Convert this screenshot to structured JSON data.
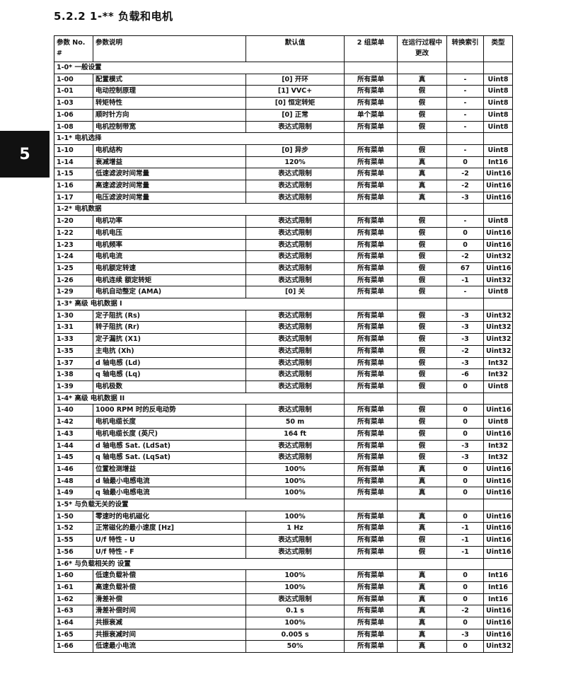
{
  "title": "5.2.2 1-** 负载和电机",
  "side_tab": "5",
  "headers": [
    "参数 No. #",
    "参数说明",
    "默认值",
    "2 组菜单",
    "在运行过程中更改",
    "转换索引",
    "类型"
  ],
  "groups": [
    {
      "label": "1-0* 一般设置",
      "rows": [
        [
          "1-00",
          "配置模式",
          "[0] 开环",
          "所有菜单",
          "真",
          "-",
          "Uint8"
        ],
        [
          "1-01",
          "电动控制原理",
          "[1] VVC+",
          "所有菜单",
          "假",
          "-",
          "Uint8"
        ],
        [
          "1-03",
          "转矩特性",
          "[0] 恒定转矩",
          "所有菜单",
          "假",
          "-",
          "Uint8"
        ],
        [
          "1-06",
          "顺时针方向",
          "[0] 正常",
          "单个菜单",
          "假",
          "-",
          "Uint8"
        ],
        [
          "1-08",
          "电机控制带宽",
          "表达式限制",
          "所有菜单",
          "假",
          "-",
          "Uint8"
        ]
      ]
    },
    {
      "label": "1-1* 电机选择",
      "rows": [
        [
          "1-10",
          "电机结构",
          "[0] 异步",
          "所有菜单",
          "假",
          "-",
          "Uint8"
        ],
        [
          "1-14",
          "衰减增益",
          "120%",
          "所有菜单",
          "真",
          "0",
          "Int16"
        ],
        [
          "1-15",
          "低速滤波时间常量",
          "表达式限制",
          "所有菜单",
          "真",
          "-2",
          "Uint16"
        ],
        [
          "1-16",
          "高速滤波时间常量",
          "表达式限制",
          "所有菜单",
          "真",
          "-2",
          "Uint16"
        ],
        [
          "1-17",
          "电压滤波时间常量",
          "表达式限制",
          "所有菜单",
          "真",
          "-3",
          "Uint16"
        ]
      ]
    },
    {
      "label": "1-2* 电机数据",
      "rows": [
        [
          "1-20",
          "电机功率",
          "表达式限制",
          "所有菜单",
          "假",
          "-",
          "Uint8"
        ],
        [
          "1-22",
          "电机电压",
          "表达式限制",
          "所有菜单",
          "假",
          "0",
          "Uint16"
        ],
        [
          "1-23",
          "电机频率",
          "表达式限制",
          "所有菜单",
          "假",
          "0",
          "Uint16"
        ],
        [
          "1-24",
          "电机电流",
          "表达式限制",
          "所有菜单",
          "假",
          "-2",
          "Uint32"
        ],
        [
          "1-25",
          "电机额定转速",
          "表达式限制",
          "所有菜单",
          "假",
          "67",
          "Uint16"
        ],
        [
          "1-26",
          "电机连续 额定转矩",
          "表达式限制",
          "所有菜单",
          "假",
          "-1",
          "Uint32"
        ],
        [
          "1-29",
          "电机自动整定 (AMA)",
          "[0] 关",
          "所有菜单",
          "假",
          "-",
          "Uint8"
        ]
      ]
    },
    {
      "label": "1-3* 高级 电机数据 I",
      "rows": [
        [
          "1-30",
          "定子阻抗 (Rs)",
          "表达式限制",
          "所有菜单",
          "假",
          "-3",
          "Uint32"
        ],
        [
          "1-31",
          "转子阻抗 (Rr)",
          "表达式限制",
          "所有菜单",
          "假",
          "-3",
          "Uint32"
        ],
        [
          "1-33",
          "定子漏抗 (X1)",
          "表达式限制",
          "所有菜单",
          "假",
          "-3",
          "Uint32"
        ],
        [
          "1-35",
          "主电抗 (Xh)",
          "表达式限制",
          "所有菜单",
          "假",
          "-2",
          "Uint32"
        ],
        [
          "1-37",
          "d 轴电感 (Ld)",
          "表达式限制",
          "所有菜单",
          "假",
          "-3",
          "Int32"
        ],
        [
          "1-38",
          "q 轴电感 (Lq)",
          "表达式限制",
          "所有菜单",
          "假",
          "-6",
          "Int32"
        ],
        [
          "1-39",
          "电机极数",
          "表达式限制",
          "所有菜单",
          "假",
          "0",
          "Uint8"
        ]
      ]
    },
    {
      "label": "1-4* 高级 电机数据 II",
      "rows": [
        [
          "1-40",
          "1000 RPM 时的反电动势",
          "表达式限制",
          "所有菜单",
          "假",
          "0",
          "Uint16"
        ],
        [
          "1-42",
          "电机电缆长度",
          "50 m",
          "所有菜单",
          "假",
          "0",
          "Uint8"
        ],
        [
          "1-43",
          "电机电缆长度 (英尺)",
          "164 ft",
          "所有菜单",
          "假",
          "0",
          "Uint16"
        ],
        [
          "1-44",
          "d 轴电感 Sat. (LdSat)",
          "表达式限制",
          "所有菜单",
          "假",
          "-3",
          "Int32"
        ],
        [
          "1-45",
          "q 轴电感 Sat. (LqSat)",
          "表达式限制",
          "所有菜单",
          "假",
          "-3",
          "Int32"
        ],
        [
          "1-46",
          "位置检测增益",
          "100%",
          "所有菜单",
          "真",
          "0",
          "Uint16"
        ],
        [
          "1-48",
          "d 轴最小电感电流",
          "100%",
          "所有菜单",
          "真",
          "0",
          "Uint16"
        ],
        [
          "1-49",
          "q 轴最小电感电流",
          "100%",
          "所有菜单",
          "真",
          "0",
          "Uint16"
        ]
      ]
    },
    {
      "label": "1-5* 与负载无关的设置",
      "rows": [
        [
          "1-50",
          "零速时的电机磁化",
          "100%",
          "所有菜单",
          "真",
          "0",
          "Uint16"
        ],
        [
          "1-52",
          "正常磁化的最小速度 [Hz]",
          "1 Hz",
          "所有菜单",
          "真",
          "-1",
          "Uint16"
        ],
        [
          "1-55",
          "U/f 特性 - U",
          "表达式限制",
          "所有菜单",
          "假",
          "-1",
          "Uint16"
        ],
        [
          "1-56",
          "U/f 特性 - F",
          "表达式限制",
          "所有菜单",
          "假",
          "-1",
          "Uint16"
        ]
      ]
    },
    {
      "label": "1-6* 与负载相关的 设置",
      "rows": [
        [
          "1-60",
          "低速负载补偿",
          "100%",
          "所有菜单",
          "真",
          "0",
          "Int16"
        ],
        [
          "1-61",
          "高速负载补偿",
          "100%",
          "所有菜单",
          "真",
          "0",
          "Int16"
        ],
        [
          "1-62",
          "滑差补偿",
          "表达式限制",
          "所有菜单",
          "真",
          "0",
          "Int16"
        ],
        [
          "1-63",
          "滑差补偿时间",
          "0.1 s",
          "所有菜单",
          "真",
          "-2",
          "Uint16"
        ],
        [
          "1-64",
          "共振衰减",
          "100%",
          "所有菜单",
          "真",
          "0",
          "Uint16"
        ],
        [
          "1-65",
          "共振衰减时间",
          "0.005 s",
          "所有菜单",
          "真",
          "-3",
          "Uint16"
        ],
        [
          "1-66",
          "低速最小电流",
          "50%",
          "所有菜单",
          "真",
          "0",
          "Uint32"
        ]
      ]
    }
  ]
}
